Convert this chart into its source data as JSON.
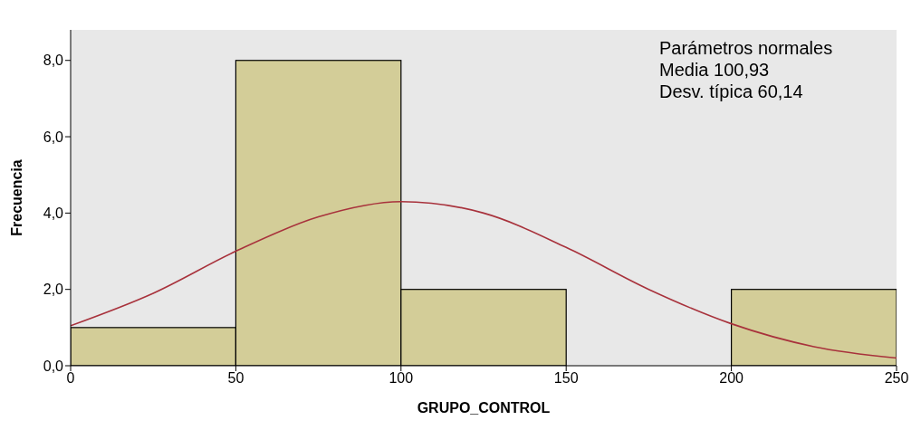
{
  "chart_data": {
    "type": "histogram",
    "xlabel": "GRUPO_CONTROL",
    "ylabel": "Frecuencia",
    "bins": [
      0,
      50,
      100,
      150,
      200,
      250
    ],
    "values": [
      1,
      8,
      2,
      0,
      2
    ],
    "color": "#d3cd98",
    "series": [
      {
        "type": "line",
        "color": "#a8323c",
        "x": [
          0,
          25,
          50,
          75,
          100,
          125,
          150,
          175,
          200,
          225,
          250
        ],
        "values": [
          1.05,
          1.9,
          3.0,
          3.9,
          4.3,
          4.0,
          3.1,
          2.0,
          1.1,
          0.5,
          0.2
        ]
      }
    ],
    "xlim": [
      0,
      250
    ],
    "xticks": [
      0,
      50,
      100,
      150,
      200,
      250
    ],
    "ylim": [
      0,
      8.8
    ],
    "yticks": [
      {
        "value": 0,
        "label": "0,0"
      },
      {
        "value": 2,
        "label": "2,0"
      },
      {
        "value": 4,
        "label": "4,0"
      },
      {
        "value": 6,
        "label": "6,0"
      },
      {
        "value": 8,
        "label": "8,0"
      }
    ],
    "annotations": [
      "Parámetros normales",
      "Media 100,93",
      "Desv. típica 60,14"
    ],
    "marker": "none"
  }
}
